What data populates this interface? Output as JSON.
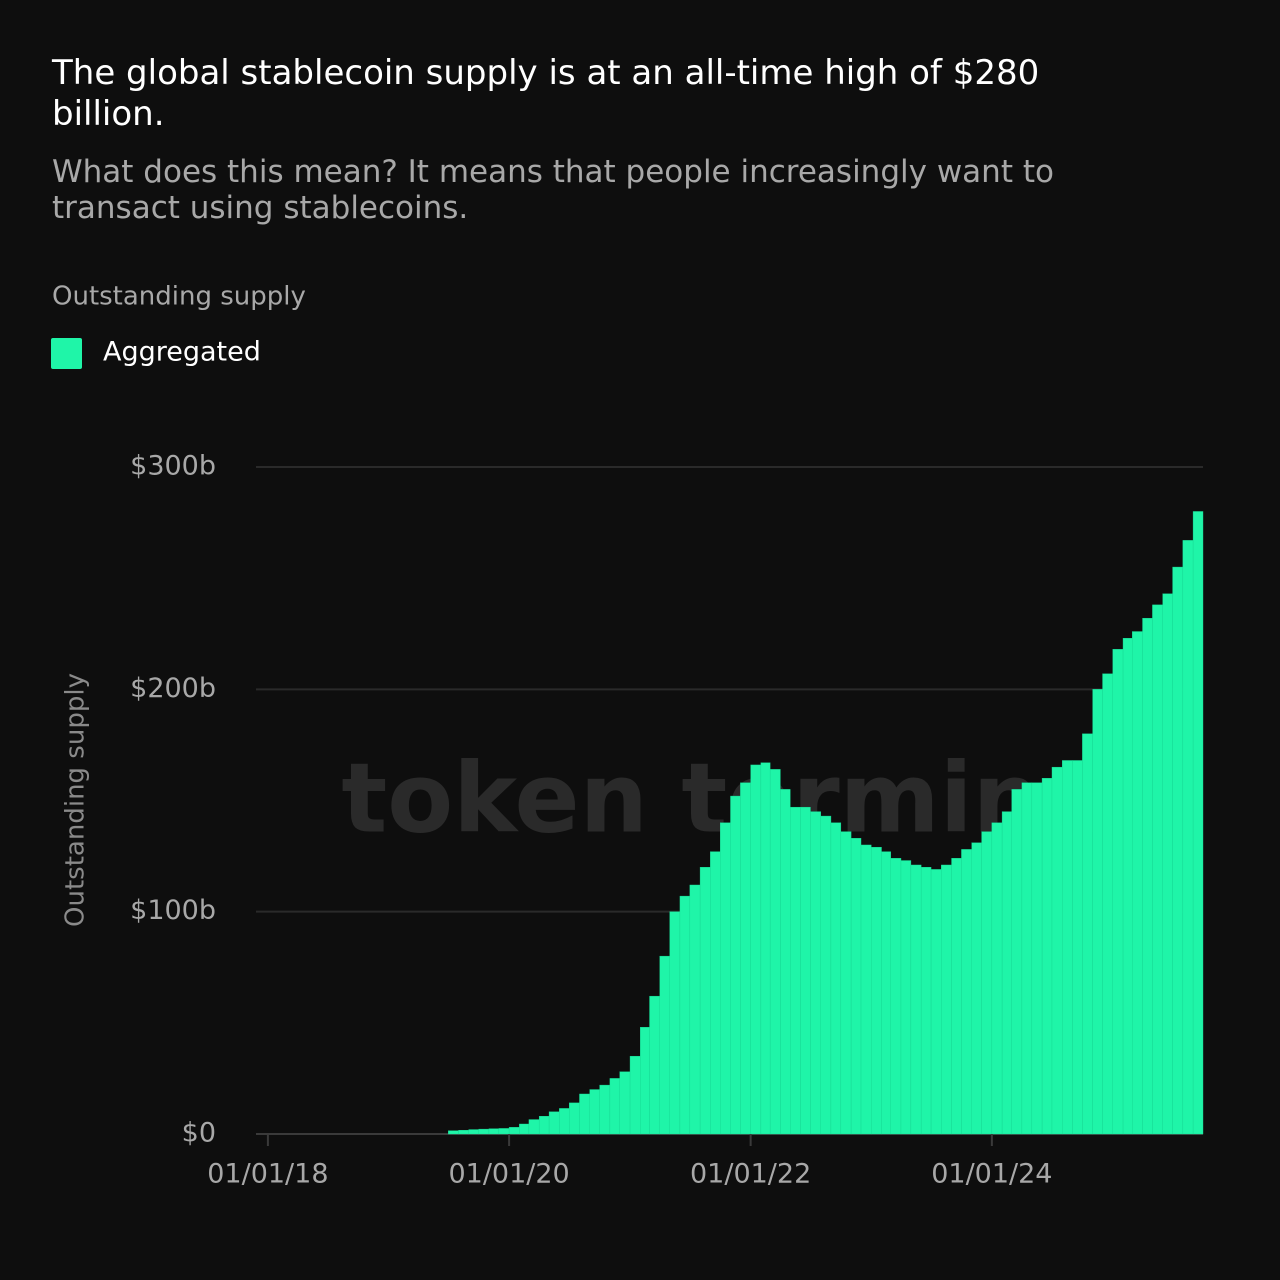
{
  "chart_data": {
    "type": "bar",
    "title": "The global stablecoin supply is at an all-time high of $280 billion.",
    "subtitle": "What does this mean? It means that people increasingly want to transact using stablecoins.",
    "chart_label": "Outstanding supply",
    "y_axis_label": "Outstanding supply",
    "watermark": "token terminal",
    "legend": "top-left",
    "grid": true,
    "x": [
      "2019-07-01",
      "2019-08-01",
      "2019-09-01",
      "2019-10-01",
      "2019-11-01",
      "2019-12-01",
      "2020-01-01",
      "2020-02-01",
      "2020-03-01",
      "2020-04-01",
      "2020-05-01",
      "2020-06-01",
      "2020-07-01",
      "2020-08-01",
      "2020-09-01",
      "2020-10-01",
      "2020-11-01",
      "2020-12-01",
      "2021-01-01",
      "2021-02-01",
      "2021-03-01",
      "2021-04-01",
      "2021-05-01",
      "2021-06-01",
      "2021-07-01",
      "2021-08-01",
      "2021-09-01",
      "2021-10-01",
      "2021-11-01",
      "2021-12-01",
      "2022-01-01",
      "2022-02-01",
      "2022-03-01",
      "2022-04-01",
      "2022-05-01",
      "2022-06-01",
      "2022-07-01",
      "2022-08-01",
      "2022-09-01",
      "2022-10-01",
      "2022-11-01",
      "2022-12-01",
      "2023-01-01",
      "2023-02-01",
      "2023-03-01",
      "2023-04-01",
      "2023-05-01",
      "2023-06-01",
      "2023-07-01",
      "2023-08-01",
      "2023-09-01",
      "2023-10-01",
      "2023-11-01",
      "2023-12-01",
      "2024-01-01",
      "2024-02-01",
      "2024-03-01",
      "2024-04-01",
      "2024-05-01",
      "2024-06-01",
      "2024-07-01",
      "2024-08-01",
      "2024-09-01",
      "2024-10-01",
      "2024-11-01",
      "2024-12-01",
      "2025-01-01",
      "2025-02-01",
      "2025-03-01",
      "2025-04-01",
      "2025-05-01",
      "2025-06-01",
      "2025-07-01",
      "2025-08-01",
      "2025-09-01"
    ],
    "series": [
      {
        "name": "Aggregated",
        "color": "#1ff5a8",
        "values": [
          1.5,
          1.7,
          2,
          2.2,
          2.4,
          2.5,
          3,
          4.5,
          6.5,
          8,
          10,
          11.5,
          14,
          18,
          20,
          22,
          25,
          28,
          35,
          48,
          62,
          80,
          100,
          107,
          112,
          120,
          127,
          140,
          152,
          158,
          166,
          167,
          164,
          155,
          147,
          147,
          145,
          143,
          140,
          136,
          133,
          130,
          129,
          127,
          124,
          123,
          121,
          120,
          119,
          121,
          124,
          128,
          131,
          136,
          140,
          145,
          155,
          158,
          158,
          160,
          165,
          168,
          168,
          180,
          200,
          207,
          218,
          223,
          226,
          232,
          238,
          243,
          255,
          267,
          280
        ]
      }
    ],
    "xlim": [
      "2017-11-26",
      "2025-10-01"
    ],
    "xticks": [
      {
        "value": "2018-01-01",
        "label": "01/01/18"
      },
      {
        "value": "2020-01-01",
        "label": "01/01/20"
      },
      {
        "value": "2022-01-01",
        "label": "01/01/22"
      },
      {
        "value": "2024-01-01",
        "label": "01/01/24"
      }
    ],
    "ylim": [
      0,
      300
    ],
    "yticks": [
      {
        "value": 0,
        "label": "$0"
      },
      {
        "value": 100,
        "label": "$100b"
      },
      {
        "value": 200,
        "label": "$200b"
      },
      {
        "value": 300,
        "label": "$300b"
      }
    ]
  }
}
